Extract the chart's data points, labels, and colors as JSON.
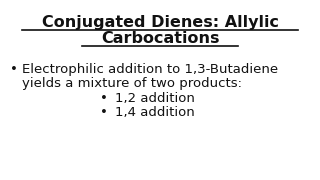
{
  "title_line1": "Conjugated Dienes: Allylic",
  "title_line2": "Carbocations",
  "bullet1_line1": "Electrophilic addition to 1,3-Butadiene",
  "bullet1_line2": "yields a mixture of two products:",
  "sub_bullet1": "1,2 addition",
  "sub_bullet2": "1,4 addition",
  "bg_color": "#ffffff",
  "text_color": "#111111",
  "title_fontsize": 11.5,
  "body_fontsize": 9.5,
  "sub_fontsize": 9.5,
  "title_underline_color": "#111111",
  "title_underline_lw": 1.2
}
